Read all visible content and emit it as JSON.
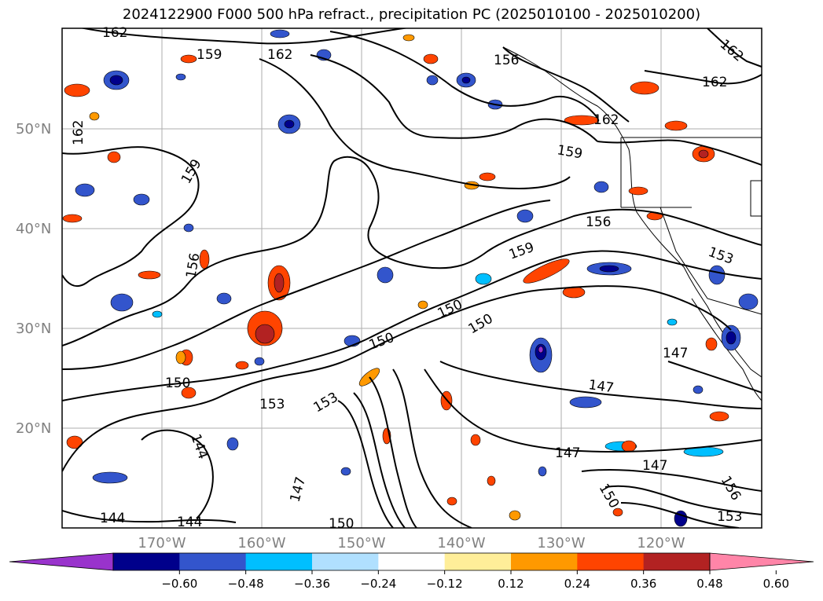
{
  "title": "2024122900 F000 500 hPa refract., precipitation PC (2025010100 - 2025010200)",
  "map": {
    "lat_labels": [
      "50°N",
      "40°N",
      "30°N",
      "20°N"
    ],
    "lon_labels": [
      "170°W",
      "160°W",
      "150°W",
      "140°W",
      "130°W",
      "120°W"
    ],
    "contour_labels": [
      "162",
      "159",
      "162",
      "156",
      "162",
      "159",
      "162",
      "162",
      "159",
      "156",
      "156",
      "159",
      "153",
      "150",
      "150",
      "150",
      "147",
      "147",
      "150",
      "153",
      "153",
      "144",
      "144",
      "144",
      "147",
      "150",
      "147",
      "147",
      "150",
      "153",
      "156",
      "162"
    ]
  },
  "colorbar": {
    "ticks": [
      "−0.60",
      "−0.48",
      "−0.36",
      "−0.24",
      "−0.12",
      "0.12",
      "0.24",
      "0.36",
      "0.48",
      "0.60"
    ],
    "colors": [
      "#9933cc",
      "#00008b",
      "#3355cc",
      "#00bfff",
      "#b0e0ff",
      "#ffffff",
      "#ffee99",
      "#ff9900",
      "#ff4400",
      "#b22222",
      "#ff85a8"
    ]
  }
}
